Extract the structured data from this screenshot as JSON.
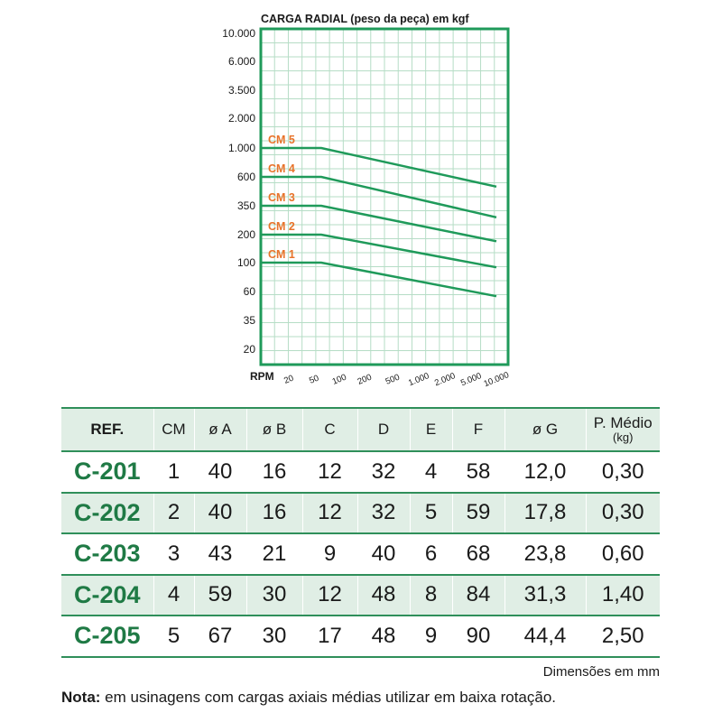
{
  "chart_data": {
    "type": "line",
    "title": "CARGA RADIAL (peso da peça) em kgf",
    "ylabel": "",
    "xlabel": "RPM",
    "y_ticks": [
      "10.000",
      "6.000",
      "3.500",
      "2.000",
      "1.000",
      "600",
      "350",
      "200",
      "100",
      "60",
      "35",
      "20"
    ],
    "x_ticks": [
      "20",
      "50",
      "100",
      "200",
      "500",
      "1.000",
      "2.000",
      "5.000",
      "10.000"
    ],
    "grid": true,
    "series": [
      {
        "name": "CM 5",
        "x": [
          "20",
          "50",
          "10.000"
        ],
        "y": [
          1000,
          1000,
          500
        ]
      },
      {
        "name": "CM 4",
        "x": [
          "20",
          "50",
          "10.000"
        ],
        "y": [
          600,
          600,
          280
        ]
      },
      {
        "name": "CM 3",
        "x": [
          "20",
          "50",
          "10.000"
        ],
        "y": [
          350,
          350,
          170
        ]
      },
      {
        "name": "CM 2",
        "x": [
          "20",
          "50",
          "10.000"
        ],
        "y": [
          200,
          200,
          92
        ]
      },
      {
        "name": "CM 1",
        "x": [
          "20",
          "50",
          "10.000"
        ],
        "y": [
          100,
          100,
          55
        ]
      }
    ]
  },
  "table": {
    "headers": [
      "REF.",
      "CM",
      "ø A",
      "ø B",
      "C",
      "D",
      "E",
      "F",
      "ø G"
    ],
    "header_last_line1": "P. Médio",
    "header_last_line2": "(kg)",
    "rows": [
      [
        "C-201",
        "1",
        "40",
        "16",
        "12",
        "32",
        "4",
        "58",
        "12,0",
        "0,30"
      ],
      [
        "C-202",
        "2",
        "40",
        "16",
        "12",
        "32",
        "5",
        "59",
        "17,8",
        "0,30"
      ],
      [
        "C-203",
        "3",
        "43",
        "21",
        "9",
        "40",
        "6",
        "68",
        "23,8",
        "0,60"
      ],
      [
        "C-204",
        "4",
        "59",
        "30",
        "12",
        "48",
        "8",
        "84",
        "31,3",
        "1,40"
      ],
      [
        "C-205",
        "5",
        "67",
        "30",
        "17",
        "48",
        "9",
        "90",
        "44,4",
        "2,50"
      ]
    ]
  },
  "note_dim": "Dimensões em mm",
  "note_label": "Nota:",
  "note_text": " em usinagens com cargas axiais médias utilizar em baixa rotação.",
  "colors": {
    "green": "#1f9a5a",
    "orange": "#e8732a",
    "grid": "#b6ddc6"
  }
}
